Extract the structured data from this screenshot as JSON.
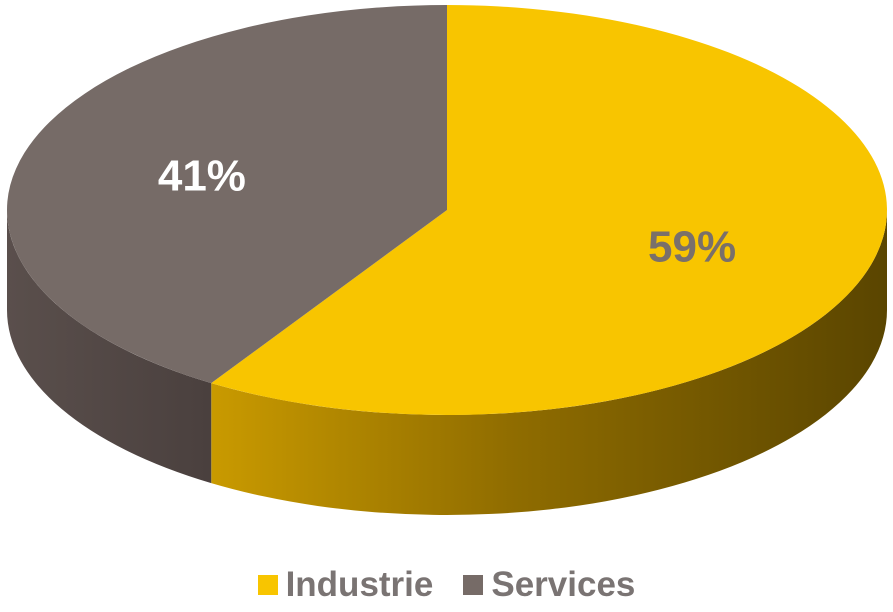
{
  "chart_data": {
    "type": "pie",
    "style": "3d",
    "series": [
      {
        "name": "Industrie",
        "value": 59,
        "label": "59%",
        "color": "#F8C500",
        "label_color": "#7a706a"
      },
      {
        "name": "Services",
        "value": 41,
        "label": "41%",
        "color": "#766B67",
        "label_color": "#ffffff"
      }
    ],
    "legend_position": "bottom"
  }
}
